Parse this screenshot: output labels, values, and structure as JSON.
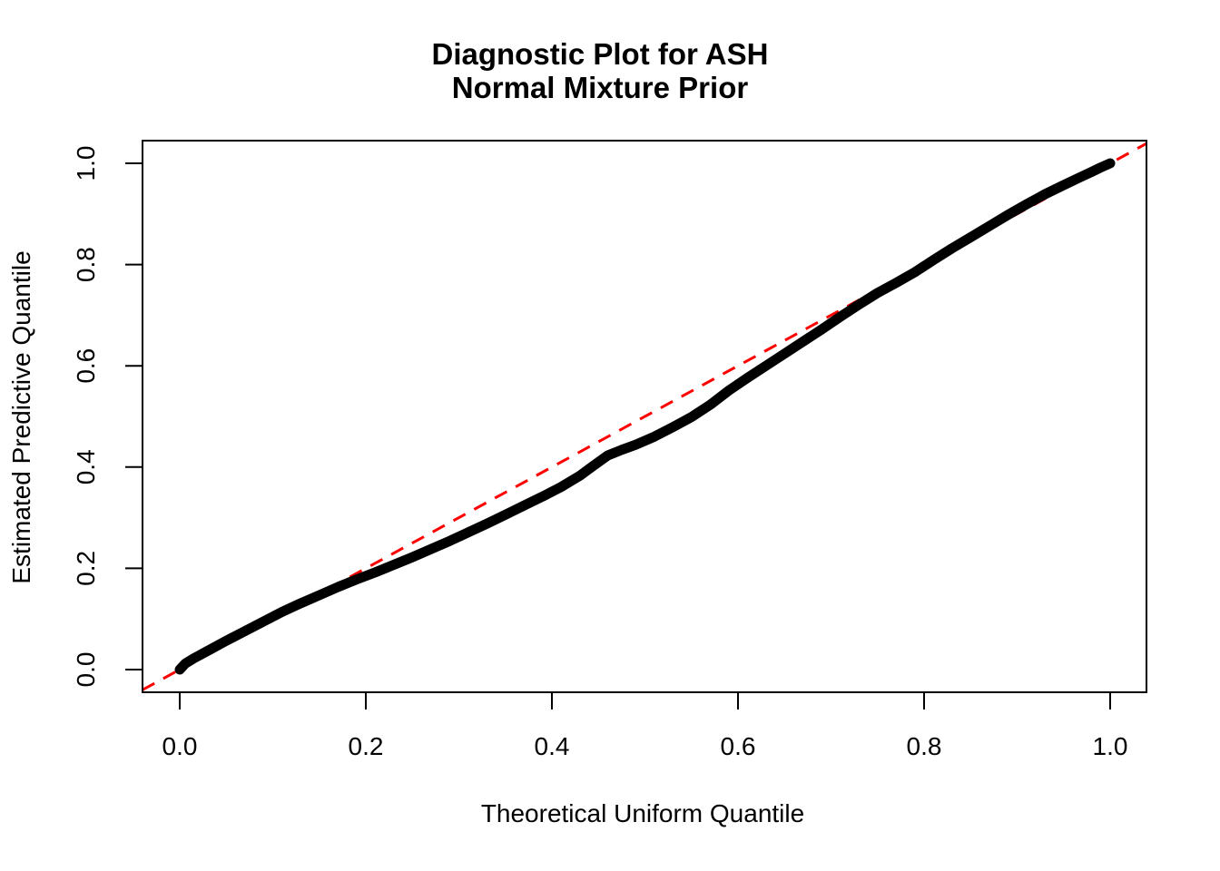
{
  "chart_data": {
    "type": "line",
    "title": "Diagnostic Plot for ASH",
    "subtitle": "Normal Mixture Prior",
    "xlabel": "Theoretical Uniform Quantile",
    "ylabel": "Estimated Predictive Quantile",
    "xlim": [
      0,
      1
    ],
    "ylim": [
      0,
      1
    ],
    "grid": "off",
    "legend": "none",
    "background_color": "#FFFFFF",
    "x_tick_labels": [
      "0.0",
      "0.2",
      "0.4",
      "0.6",
      "0.8",
      "1.0"
    ],
    "y_tick_labels": [
      "0.0",
      "0.2",
      "0.4",
      "0.6",
      "0.8",
      "1.0"
    ],
    "x_tick_values": [
      0.0,
      0.2,
      0.4,
      0.6,
      0.8,
      1.0
    ],
    "y_tick_values": [
      0.0,
      0.2,
      0.4,
      0.6,
      0.8,
      1.0
    ],
    "series": [
      {
        "name": "estimated-predictive-quantile-curve",
        "color": "#000000",
        "style": "thick-point-band",
        "line_width": 11,
        "x": [
          0.0,
          0.006,
          0.015,
          0.03,
          0.05,
          0.07,
          0.09,
          0.11,
          0.13,
          0.15,
          0.17,
          0.19,
          0.21,
          0.23,
          0.25,
          0.27,
          0.29,
          0.31,
          0.33,
          0.35,
          0.37,
          0.39,
          0.41,
          0.43,
          0.445,
          0.46,
          0.475,
          0.49,
          0.51,
          0.53,
          0.55,
          0.57,
          0.59,
          0.61,
          0.63,
          0.65,
          0.67,
          0.69,
          0.71,
          0.73,
          0.75,
          0.77,
          0.79,
          0.81,
          0.83,
          0.85,
          0.87,
          0.89,
          0.91,
          0.93,
          0.95,
          0.965,
          0.98,
          0.99,
          1.0
        ],
        "y": [
          0.0,
          0.012,
          0.022,
          0.037,
          0.057,
          0.076,
          0.095,
          0.114,
          0.131,
          0.147,
          0.163,
          0.178,
          0.192,
          0.207,
          0.222,
          0.238,
          0.254,
          0.271,
          0.288,
          0.306,
          0.324,
          0.342,
          0.361,
          0.383,
          0.403,
          0.423,
          0.434,
          0.444,
          0.46,
          0.479,
          0.499,
          0.523,
          0.551,
          0.576,
          0.6,
          0.624,
          0.648,
          0.672,
          0.697,
          0.721,
          0.744,
          0.764,
          0.785,
          0.809,
          0.832,
          0.854,
          0.876,
          0.898,
          0.919,
          0.939,
          0.957,
          0.97,
          0.983,
          0.992,
          1.0
        ]
      }
    ],
    "reference_line": {
      "name": "y-equals-x-diagonal",
      "intercept": 0,
      "slope": 1,
      "color": "#FF0000",
      "style": "dashed",
      "line_width": 3
    }
  }
}
